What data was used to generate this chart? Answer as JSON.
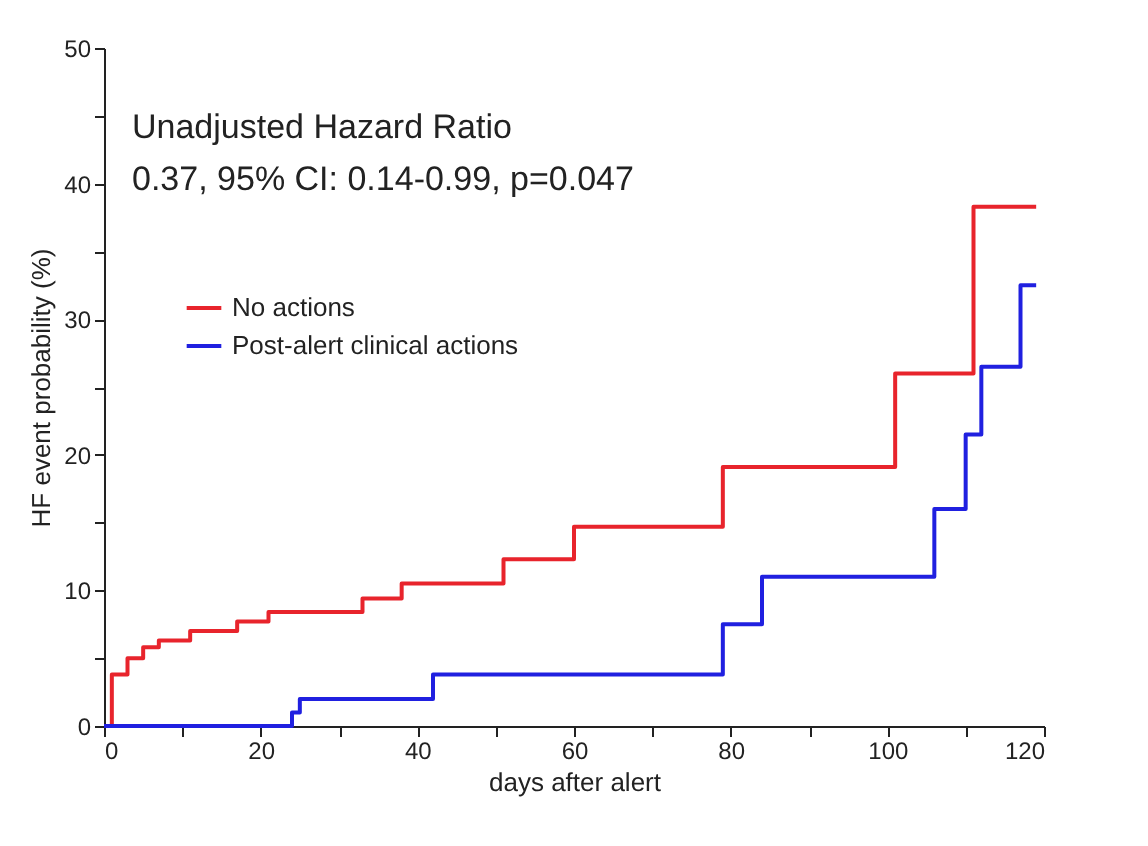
{
  "chart_data": {
    "type": "step",
    "xlabel": "days after alert",
    "ylabel": "HF event probability (%)",
    "annotations": [
      "Unadjusted Hazard Ratio",
      "0.37, 95% CI: 0.14-0.99, p=0.047"
    ],
    "series": [
      {
        "name": "No actions",
        "color": "#e8242c",
        "x": [
          0,
          1,
          3,
          5,
          7,
          11,
          17,
          21,
          33,
          38,
          51,
          60,
          79,
          101,
          111,
          119
        ],
        "values": [
          0,
          3.8,
          5,
          5.8,
          6.3,
          7,
          7.7,
          8.4,
          9.4,
          10.5,
          12.3,
          14.7,
          19.1,
          26,
          38.3,
          38.3
        ]
      },
      {
        "name": "Post-alert clinical actions",
        "color": "#2020e0",
        "x": [
          0,
          24,
          25,
          42,
          79,
          84,
          106,
          110,
          112,
          117,
          119
        ],
        "values": [
          0,
          1,
          2,
          3.8,
          7.5,
          11,
          16,
          21.5,
          26.5,
          32.5,
          32.5
        ]
      }
    ],
    "xlim": [
      0,
      120
    ],
    "xticks": [
      0,
      {
        "value": 10,
        "label": null
      },
      20,
      {
        "value": 30,
        "label": null
      },
      40,
      {
        "value": 50,
        "label": null
      },
      60,
      {
        "value": 70,
        "label": null
      },
      80,
      {
        "value": 90,
        "label": null
      },
      100,
      {
        "value": 110,
        "label": null
      },
      120
    ],
    "ylim": [
      0,
      50
    ],
    "yticks": [
      0,
      {
        "value": 5,
        "label": null
      },
      10,
      {
        "value": 15,
        "label": null
      },
      20,
      {
        "value": 25,
        "label": null
      },
      30,
      {
        "value": 35,
        "label": null
      },
      40,
      {
        "value": 45,
        "label": null
      },
      50
    ],
    "legend": "left",
    "grid": false,
    "marker": "none",
    "line_style": "solid"
  }
}
